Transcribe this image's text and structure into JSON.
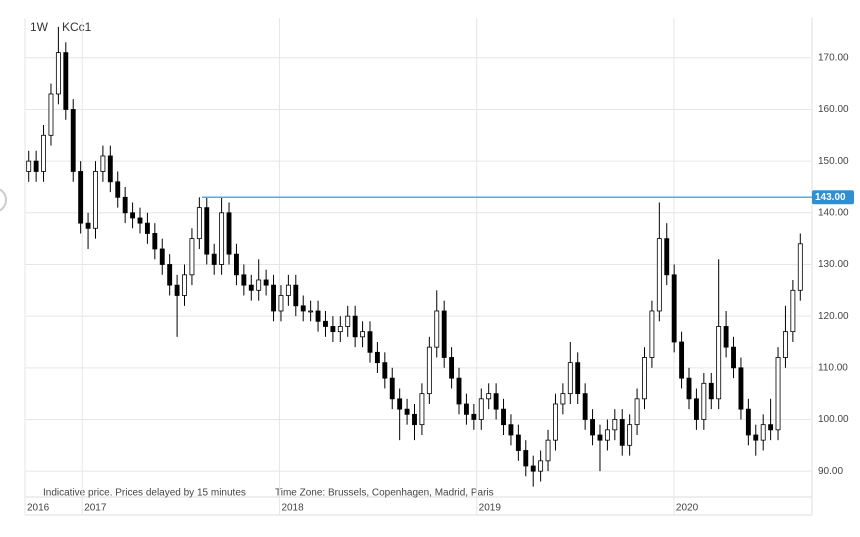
{
  "chart_data": {
    "type": "candlestick",
    "interval": "1W",
    "symbol": "KCc1",
    "note": "Indicative price. Prices delayed by 15 minutes",
    "timezone": "Time Zone: Brussels, Copenhagen, Madrid, Paris",
    "ylim": [
      85,
      177.7
    ],
    "yticks": [
      {
        "value": 90,
        "label": "90.00"
      },
      {
        "value": 100,
        "label": "100.00"
      },
      {
        "value": 110,
        "label": "110.00"
      },
      {
        "value": 120,
        "label": "120.00"
      },
      {
        "value": 130,
        "label": "130.00"
      },
      {
        "value": 140,
        "label": "140.00"
      },
      {
        "value": 150,
        "label": "150.00"
      },
      {
        "value": 160,
        "label": "160.00"
      },
      {
        "value": 170,
        "label": "170.00"
      }
    ],
    "xlim": [
      2016.71,
      2020.7
    ],
    "xticks": [
      {
        "value": 2016.71,
        "label": "2016"
      },
      2017,
      2018,
      2019,
      2020
    ],
    "grid": true,
    "up_color": "#ffffff",
    "down_color": "#000000",
    "hline": {
      "value": 143,
      "label": "143.00",
      "color": "#5aa9d8"
    },
    "open": [
      148,
      150,
      148,
      155,
      163,
      171,
      160,
      148,
      138,
      137,
      148,
      151,
      146,
      143,
      140,
      139,
      138,
      136,
      133,
      130,
      126,
      124,
      128,
      135,
      141,
      132,
      130,
      140,
      132,
      128,
      126,
      125,
      127,
      126,
      121,
      124,
      126,
      122,
      121,
      121,
      119,
      118,
      117,
      118,
      120,
      116,
      117,
      113,
      111,
      108,
      104,
      102,
      101,
      99,
      105,
      114,
      121,
      112,
      108,
      103,
      101,
      100,
      104,
      105,
      102,
      99,
      97,
      94,
      91,
      90,
      92,
      96,
      103,
      105,
      111,
      105,
      100,
      97,
      96,
      98,
      100,
      95,
      99,
      104,
      112,
      121,
      135,
      128,
      115,
      108,
      104,
      100,
      107,
      104,
      118,
      114,
      110,
      102,
      97,
      96,
      99,
      98,
      112,
      117,
      125
    ],
    "high": [
      152,
      152,
      157,
      165,
      176,
      173,
      162,
      150,
      140,
      150,
      153,
      153,
      148,
      145,
      142,
      141,
      140,
      138,
      135,
      132,
      128,
      130,
      137,
      143,
      143,
      134,
      143,
      142,
      134,
      130,
      128,
      131,
      129,
      128,
      126,
      128,
      128,
      124,
      123,
      123,
      121,
      120,
      120,
      122,
      122,
      119,
      119,
      115,
      113,
      110,
      106,
      104,
      103,
      107,
      116,
      125,
      123,
      114,
      110,
      105,
      103,
      106,
      107,
      107,
      104,
      101,
      99,
      96,
      93,
      94,
      98,
      105,
      107,
      115,
      113,
      107,
      102,
      99,
      100,
      102,
      102,
      101,
      106,
      114,
      123,
      142,
      138,
      130,
      117,
      110,
      106,
      109,
      109,
      131,
      121,
      116,
      112,
      104,
      99,
      101,
      104,
      114,
      122,
      127,
      136
    ],
    "low": [
      146,
      146,
      146,
      153,
      161,
      158,
      146,
      136,
      133,
      135,
      146,
      144,
      141,
      138,
      137,
      136,
      134,
      131,
      128,
      124,
      116,
      122,
      126,
      133,
      130,
      128,
      128,
      130,
      126,
      124,
      123,
      123,
      124,
      119,
      119,
      122,
      120,
      119,
      119,
      117,
      116,
      115,
      115,
      116,
      114,
      114,
      111,
      109,
      106,
      102,
      96,
      99,
      96,
      97,
      103,
      112,
      110,
      106,
      101,
      99,
      98,
      98,
      102,
      100,
      97,
      95,
      92,
      89,
      87,
      88,
      90,
      94,
      101,
      103,
      103,
      98,
      95,
      90,
      94,
      96,
      93,
      93,
      97,
      102,
      110,
      119,
      126,
      113,
      106,
      102,
      98,
      98,
      102,
      102,
      112,
      108,
      100,
      95,
      93,
      94,
      96,
      96,
      110,
      115,
      123
    ],
    "close": [
      150,
      148,
      155,
      163,
      171,
      160,
      148,
      138,
      137,
      148,
      151,
      146,
      143,
      140,
      139,
      138,
      136,
      133,
      130,
      126,
      124,
      128,
      135,
      141,
      132,
      130,
      140,
      132,
      128,
      126,
      125,
      127,
      126,
      121,
      124,
      126,
      122,
      121,
      121,
      119,
      118,
      117,
      118,
      120,
      116,
      117,
      113,
      111,
      108,
      104,
      102,
      101,
      99,
      105,
      114,
      121,
      112,
      108,
      103,
      101,
      100,
      104,
      105,
      102,
      99,
      97,
      94,
      91,
      90,
      92,
      96,
      103,
      105,
      111,
      105,
      100,
      97,
      96,
      98,
      100,
      95,
      99,
      104,
      112,
      121,
      135,
      128,
      115,
      108,
      104,
      100,
      107,
      104,
      118,
      114,
      110,
      102,
      97,
      96,
      99,
      98,
      112,
      117,
      125,
      134
    ]
  }
}
